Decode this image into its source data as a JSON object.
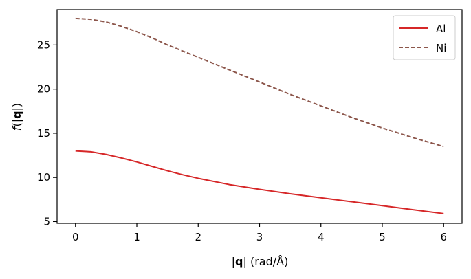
{
  "chart_data": {
    "type": "line",
    "xlabel_prefix": "|",
    "xlabel_bold": "q",
    "xlabel_suffix": "| (rad/Å)",
    "ylabel_f": "f",
    "ylabel_open": "(|",
    "ylabel_bold": "q",
    "ylabel_close": "|)",
    "xlim": [
      -0.3,
      6.3
    ],
    "ylim": [
      4.8,
      29.0
    ],
    "xticks": [
      0,
      1,
      2,
      3,
      4,
      5,
      6
    ],
    "yticks": [
      5,
      10,
      15,
      20,
      25
    ],
    "legend_position": "top-right",
    "series": [
      {
        "name": "Al",
        "color": "#d62728",
        "dash": "solid",
        "x": [
          0,
          0.25,
          0.5,
          0.75,
          1.0,
          1.25,
          1.5,
          1.75,
          2.0,
          2.5,
          3.0,
          3.5,
          4.0,
          4.5,
          5.0,
          5.5,
          6.0
        ],
        "y": [
          13.0,
          12.9,
          12.6,
          12.2,
          11.75,
          11.25,
          10.75,
          10.3,
          9.9,
          9.2,
          8.65,
          8.15,
          7.7,
          7.25,
          6.8,
          6.35,
          5.9
        ]
      },
      {
        "name": "Ni",
        "color": "#8c564b",
        "dash": "dashed",
        "x": [
          0,
          0.25,
          0.5,
          0.75,
          1.0,
          1.25,
          1.5,
          1.75,
          2.0,
          2.5,
          3.0,
          3.5,
          4.0,
          4.5,
          5.0,
          5.5,
          6.0
        ],
        "y": [
          28.0,
          27.9,
          27.6,
          27.1,
          26.5,
          25.8,
          25.0,
          24.3,
          23.6,
          22.2,
          20.8,
          19.4,
          18.1,
          16.8,
          15.6,
          14.5,
          13.5
        ]
      }
    ]
  }
}
